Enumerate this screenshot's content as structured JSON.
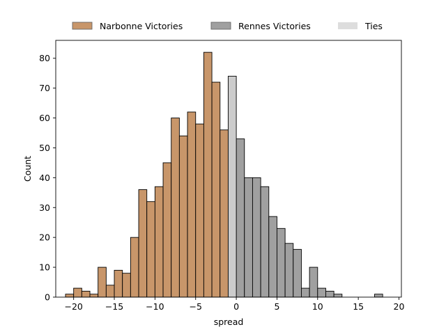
{
  "chart_data": {
    "type": "bar",
    "title": "",
    "xlabel": "spread",
    "ylabel": "Count",
    "xlim": [
      -22.2,
      20.3
    ],
    "ylim": [
      0,
      86
    ],
    "bin_width": 1,
    "xticks": [
      -20,
      -15,
      -10,
      -5,
      0,
      5,
      10,
      15,
      20
    ],
    "yticks": [
      0,
      10,
      20,
      30,
      40,
      50,
      60,
      70,
      80
    ],
    "grid": false,
    "legend_position": "top-center-outside",
    "series": [
      {
        "name": "Narbonne Victories",
        "color": "#c8966a",
        "bins": [
          {
            "x": -20.5,
            "count": 1
          },
          {
            "x": -19.5,
            "count": 3
          },
          {
            "x": -18.5,
            "count": 2
          },
          {
            "x": -17.5,
            "count": 1
          },
          {
            "x": -16.5,
            "count": 10
          },
          {
            "x": -15.5,
            "count": 4
          },
          {
            "x": -14.5,
            "count": 9
          },
          {
            "x": -13.5,
            "count": 8
          },
          {
            "x": -12.5,
            "count": 20
          },
          {
            "x": -11.5,
            "count": 36
          },
          {
            "x": -10.5,
            "count": 32
          },
          {
            "x": -9.5,
            "count": 37
          },
          {
            "x": -8.5,
            "count": 45
          },
          {
            "x": -7.5,
            "count": 60
          },
          {
            "x": -6.5,
            "count": 54
          },
          {
            "x": -5.5,
            "count": 62
          },
          {
            "x": -4.5,
            "count": 58
          },
          {
            "x": -3.5,
            "count": 82
          },
          {
            "x": -2.5,
            "count": 72
          },
          {
            "x": -1.5,
            "count": 56
          }
        ]
      },
      {
        "name": "Rennes Victories",
        "color": "#a0a0a0",
        "bins": [
          {
            "x": 0.5,
            "count": 53
          },
          {
            "x": 1.5,
            "count": 40
          },
          {
            "x": 2.5,
            "count": 40
          },
          {
            "x": 3.5,
            "count": 37
          },
          {
            "x": 4.5,
            "count": 27
          },
          {
            "x": 5.5,
            "count": 23
          },
          {
            "x": 6.5,
            "count": 18
          },
          {
            "x": 7.5,
            "count": 16
          },
          {
            "x": 8.5,
            "count": 3
          },
          {
            "x": 9.5,
            "count": 10
          },
          {
            "x": 10.5,
            "count": 3
          },
          {
            "x": 11.5,
            "count": 2
          },
          {
            "x": 12.5,
            "count": 1
          },
          {
            "x": 17.5,
            "count": 1
          }
        ]
      },
      {
        "name": "Ties",
        "color": "#cccccc",
        "bins": [
          {
            "x": -0.5,
            "count": 74
          }
        ]
      }
    ],
    "legend": [
      {
        "label": "Narbonne Victories",
        "color": "#c8966a"
      },
      {
        "label": "Rennes Victories",
        "color": "#a0a0a0"
      },
      {
        "label": "Ties",
        "color": "#dddddd"
      }
    ]
  }
}
